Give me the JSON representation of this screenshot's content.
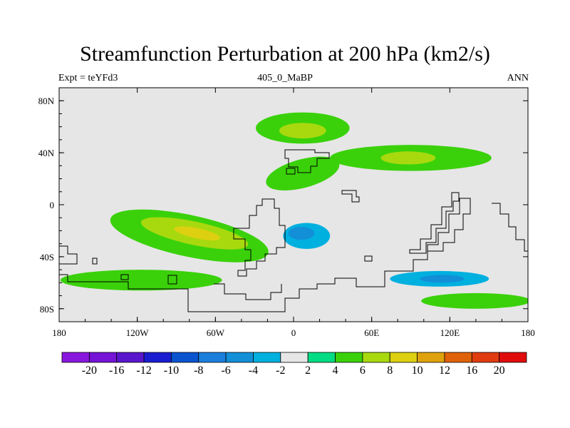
{
  "figure": {
    "title": "Streamfunction Perturbation at 200 hPa (km2/s)",
    "subtitle_left": "Expt = teYFd3",
    "subtitle_center": "405_0_MaBP",
    "subtitle_right": "ANN"
  },
  "chart_data": {
    "type": "heatmap",
    "title": "Streamfunction Perturbation at 200 hPa (km2/s)",
    "xlabel": "",
    "ylabel": "",
    "xlim": [
      -180,
      180
    ],
    "ylim": [
      -90,
      90
    ],
    "x_ticks": [
      {
        "value": -180,
        "label": "180"
      },
      {
        "value": -120,
        "label": "120W"
      },
      {
        "value": -60,
        "label": "60W"
      },
      {
        "value": 0,
        "label": "0"
      },
      {
        "value": 60,
        "label": "60E"
      },
      {
        "value": 120,
        "label": "120E"
      },
      {
        "value": 180,
        "label": "180"
      }
    ],
    "y_ticks": [
      {
        "value": 80,
        "label": "80N"
      },
      {
        "value": 40,
        "label": "40N"
      },
      {
        "value": 0,
        "label": "0"
      },
      {
        "value": -40,
        "label": "40S"
      },
      {
        "value": -80,
        "label": "80S"
      }
    ],
    "background_color": "#e6e6e6",
    "contour_regions": [
      {
        "name": "n-pacific-low",
        "value": 4,
        "lon": 7,
        "lat": 59,
        "rlon": 36,
        "rlat": 12,
        "rot": 0
      },
      {
        "name": "n-pacific-core",
        "value": 6,
        "lon": 7,
        "lat": 57,
        "rlon": 18,
        "rlat": 6,
        "rot": 0
      },
      {
        "name": "n-america-high",
        "value": -2,
        "lon": -100,
        "lat": 32,
        "rlon": 75,
        "rlat": 9,
        "rot": 0
      },
      {
        "name": "n-atlantic-low",
        "value": 4,
        "lon": 7,
        "lat": 24,
        "rlon": 29,
        "rlat": 11,
        "rot": -15
      },
      {
        "name": "ne-pacific-high",
        "value": -2,
        "lon": 128,
        "lat": 58,
        "rlon": 55,
        "rlat": 14,
        "rot": 0
      },
      {
        "name": "n-asia-low",
        "value": 4,
        "lon": 90,
        "lat": 36,
        "rlon": 62,
        "rlat": 10,
        "rot": 0
      },
      {
        "name": "n-asia-core",
        "value": 6,
        "lon": 88,
        "lat": 36,
        "rlon": 21,
        "rlat": 5,
        "rot": 0
      },
      {
        "name": "indian-high",
        "value": -2,
        "lon": 88,
        "lat": 3,
        "rlon": 40,
        "rlat": 12,
        "rot": 20
      },
      {
        "name": "s-america-low",
        "value": 4,
        "lon": -80,
        "lat": -24,
        "rlon": 62,
        "rlat": 16,
        "rot": 12
      },
      {
        "name": "s-america-mid",
        "value": 6,
        "lon": -76,
        "lat": -22,
        "rlon": 42,
        "rlat": 9,
        "rot": 12
      },
      {
        "name": "s-america-core",
        "value": 8,
        "lon": -74,
        "lat": -22,
        "rlon": 18,
        "rlat": 4,
        "rot": 12
      },
      {
        "name": "s-atlantic-high",
        "value": -2,
        "lon": 6,
        "lat": -20,
        "rlon": 32,
        "rlat": 15,
        "rot": 0
      },
      {
        "name": "s-atlantic-mid",
        "value": -4,
        "lon": 10,
        "lat": -24,
        "rlon": 18,
        "rlat": 10,
        "rot": 0
      },
      {
        "name": "s-atlantic-core",
        "value": -6,
        "lon": 6,
        "lat": -22,
        "rlon": 10,
        "rlat": 5,
        "rot": 0
      },
      {
        "name": "se-pacific-high",
        "value": -2,
        "lon": -180,
        "lat": -30,
        "rlon": 15,
        "rlat": 14,
        "rot": 0
      },
      {
        "name": "sw-pacific-high",
        "value": -2,
        "lon": 178,
        "lat": -27,
        "rlon": 20,
        "rlat": 11,
        "rot": 0
      },
      {
        "name": "s-pacific-low",
        "value": 4,
        "lon": -117,
        "lat": -58,
        "rlon": 62,
        "rlat": 8,
        "rot": 0
      },
      {
        "name": "s-indian-high",
        "value": -2,
        "lon": 116,
        "lat": -55,
        "rlon": 70,
        "rlat": 13,
        "rot": 0
      },
      {
        "name": "s-indian-mid",
        "value": -4,
        "lon": 112,
        "lat": -57,
        "rlon": 38,
        "rlat": 6,
        "rot": 0
      },
      {
        "name": "s-indian-core",
        "value": -6,
        "lon": 114,
        "lat": -57,
        "rlon": 17,
        "rlat": 3,
        "rot": 0
      },
      {
        "name": "s-ocean-high",
        "value": -2,
        "lon": 27,
        "lat": -71,
        "rlon": 10,
        "rlat": 4,
        "rot": 0
      },
      {
        "name": "s-ocean-low",
        "value": 4,
        "lon": 140,
        "lat": -74,
        "rlon": 42,
        "rlat": 6,
        "rot": 0
      }
    ],
    "colorbar": {
      "colors": [
        "#8a17de",
        "#7513d6",
        "#5a16cc",
        "#1a1ccf",
        "#0a54d0",
        "#1a7fdc",
        "#128fd7",
        "#00b0df",
        "#e6e6e6",
        "#00dc83",
        "#3ad10a",
        "#a8d90f",
        "#dcd010",
        "#e0a20c",
        "#e06208",
        "#e03c10",
        "#e00c0c"
      ],
      "labels": [
        "-20",
        "-16",
        "-12",
        "-10",
        "-8",
        "-6",
        "-4",
        "-2",
        "2",
        "4",
        "6",
        "8",
        "10",
        "12",
        "16",
        "20"
      ]
    }
  }
}
